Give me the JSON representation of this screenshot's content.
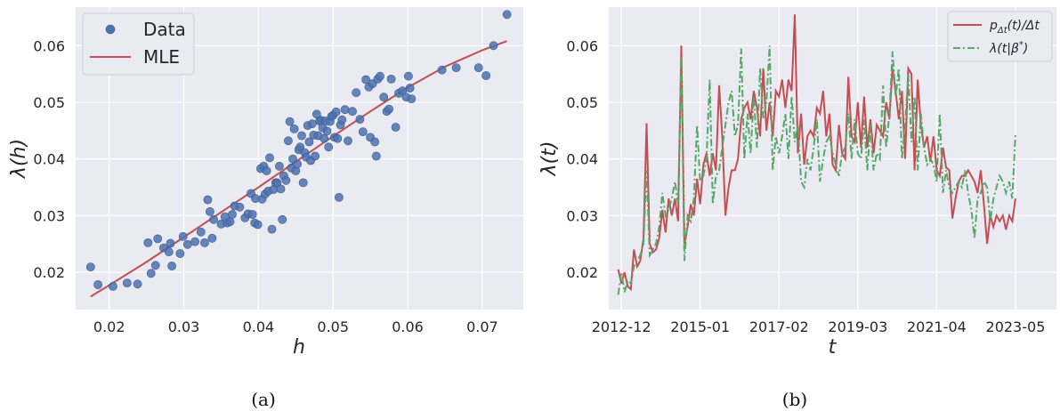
{
  "chart_data": [
    {
      "type": "scatter",
      "panel_label": "(a)",
      "xlabel": "h",
      "ylabel": "λ(h)",
      "xlim": [
        0.0155,
        0.0755
      ],
      "ylim": [
        0.0134,
        0.0668
      ],
      "xticks": [
        0.02,
        0.03,
        0.04,
        0.05,
        0.06,
        0.07
      ],
      "xtick_labels": [
        "0.02",
        "0.03",
        "0.04",
        "0.05",
        "0.06",
        "0.07"
      ],
      "yticks": [
        0.02,
        0.03,
        0.04,
        0.05,
        0.06
      ],
      "ytick_labels": [
        "0.02",
        "0.03",
        "0.04",
        "0.05",
        "0.06"
      ],
      "grid": true,
      "legend_position": "top-left",
      "colors": {
        "data": "#4c72b0",
        "mle": "#c44e52",
        "background": "#eaeaf2",
        "grid": "#ffffff"
      },
      "series": [
        {
          "name": "Data",
          "kind": "scatter",
          "points": [
            [
              0.0175,
              0.0209
            ],
            [
              0.0185,
              0.0178
            ],
            [
              0.0205,
              0.0175
            ],
            [
              0.0224,
              0.0181
            ],
            [
              0.0238,
              0.0179
            ],
            [
              0.0252,
              0.0252
            ],
            [
              0.0256,
              0.0198
            ],
            [
              0.0262,
              0.0212
            ],
            [
              0.0265,
              0.0259
            ],
            [
              0.0273,
              0.0243
            ],
            [
              0.028,
              0.0236
            ],
            [
              0.0282,
              0.0251
            ],
            [
              0.0284,
              0.0211
            ],
            [
              0.0295,
              0.0233
            ],
            [
              0.0299,
              0.0263
            ],
            [
              0.0305,
              0.0249
            ],
            [
              0.0315,
              0.0254
            ],
            [
              0.0323,
              0.0271
            ],
            [
              0.0328,
              0.0252
            ],
            [
              0.0332,
              0.0328
            ],
            [
              0.0335,
              0.0307
            ],
            [
              0.0338,
              0.026
            ],
            [
              0.034,
              0.0293
            ],
            [
              0.035,
              0.0285
            ],
            [
              0.0355,
              0.0298
            ],
            [
              0.0358,
              0.0287
            ],
            [
              0.0362,
              0.0289
            ],
            [
              0.0365,
              0.0302
            ],
            [
              0.0368,
              0.0317
            ],
            [
              0.0375,
              0.0315
            ],
            [
              0.0382,
              0.0296
            ],
            [
              0.0386,
              0.0303
            ],
            [
              0.039,
              0.0339
            ],
            [
              0.0392,
              0.0302
            ],
            [
              0.0395,
              0.0287
            ],
            [
              0.0396,
              0.033
            ],
            [
              0.0399,
              0.0284
            ],
            [
              0.0403,
              0.0383
            ],
            [
              0.0405,
              0.0329
            ],
            [
              0.0407,
              0.0387
            ],
            [
              0.0409,
              0.0338
            ],
            [
              0.0411,
              0.0379
            ],
            [
              0.0413,
              0.0343
            ],
            [
              0.0415,
              0.0402
            ],
            [
              0.0418,
              0.0276
            ],
            [
              0.042,
              0.0346
            ],
            [
              0.0423,
              0.0358
            ],
            [
              0.0425,
              0.0358
            ],
            [
              0.0428,
              0.0387
            ],
            [
              0.043,
              0.0347
            ],
            [
              0.0432,
              0.0293
            ],
            [
              0.0434,
              0.037
            ],
            [
              0.0437,
              0.0362
            ],
            [
              0.044,
              0.0432
            ],
            [
              0.0442,
              0.0466
            ],
            [
              0.0444,
              0.0384
            ],
            [
              0.0446,
              0.04
            ],
            [
              0.0448,
              0.0453
            ],
            [
              0.045,
              0.0379
            ],
            [
              0.0452,
              0.0391
            ],
            [
              0.0454,
              0.0416
            ],
            [
              0.0456,
              0.0421
            ],
            [
              0.0458,
              0.0441
            ],
            [
              0.046,
              0.0358
            ],
            [
              0.0462,
              0.0411
            ],
            [
              0.0464,
              0.0403
            ],
            [
              0.0466,
              0.0459
            ],
            [
              0.0468,
              0.043
            ],
            [
              0.047,
              0.0397
            ],
            [
              0.0472,
              0.0462
            ],
            [
              0.0474,
              0.0442
            ],
            [
              0.0476,
              0.0405
            ],
            [
              0.0478,
              0.0479
            ],
            [
              0.048,
              0.0441
            ],
            [
              0.0482,
              0.0467
            ],
            [
              0.0484,
              0.0468
            ],
            [
              0.0486,
              0.0455
            ],
            [
              0.0488,
              0.0436
            ],
            [
              0.049,
              0.0467
            ],
            [
              0.0492,
              0.0449
            ],
            [
              0.0494,
              0.0421
            ],
            [
              0.0496,
              0.0466
            ],
            [
              0.0498,
              0.0475
            ],
            [
              0.05,
              0.0477
            ],
            [
              0.0502,
              0.0438
            ],
            [
              0.0504,
              0.0483
            ],
            [
              0.0506,
              0.0436
            ],
            [
              0.0508,
              0.0332
            ],
            [
              0.051,
              0.046
            ],
            [
              0.0512,
              0.0469
            ],
            [
              0.0516,
              0.0487
            ],
            [
              0.052,
              0.0432
            ],
            [
              0.0526,
              0.0484
            ],
            [
              0.0531,
              0.0517
            ],
            [
              0.0536,
              0.047
            ],
            [
              0.054,
              0.0448
            ],
            [
              0.0544,
              0.054
            ],
            [
              0.0548,
              0.0527
            ],
            [
              0.055,
              0.0438
            ],
            [
              0.0553,
              0.0533
            ],
            [
              0.0556,
              0.043
            ],
            [
              0.0558,
              0.0405
            ],
            [
              0.056,
              0.0541
            ],
            [
              0.0563,
              0.0546
            ],
            [
              0.0568,
              0.0509
            ],
            [
              0.0572,
              0.0484
            ],
            [
              0.0575,
              0.0488
            ],
            [
              0.0578,
              0.0541
            ],
            [
              0.0584,
              0.0456
            ],
            [
              0.0588,
              0.0516
            ],
            [
              0.0593,
              0.052
            ],
            [
              0.0598,
              0.0509
            ],
            [
              0.0601,
              0.0546
            ],
            [
              0.0603,
              0.0525
            ],
            [
              0.0605,
              0.0506
            ],
            [
              0.0646,
              0.0557
            ],
            [
              0.0665,
              0.0561
            ],
            [
              0.0695,
              0.0561
            ],
            [
              0.0705,
              0.0547
            ],
            [
              0.0715,
              0.06
            ],
            [
              0.0733,
              0.0655
            ]
          ]
        },
        {
          "name": "MLE",
          "kind": "line",
          "points": [
            [
              0.0175,
              0.0157
            ],
            [
              0.02,
              0.0177
            ],
            [
              0.025,
              0.0218
            ],
            [
              0.03,
              0.0262
            ],
            [
              0.035,
              0.0306
            ],
            [
              0.04,
              0.035
            ],
            [
              0.045,
              0.0395
            ],
            [
              0.05,
              0.044
            ],
            [
              0.055,
              0.0484
            ],
            [
              0.06,
              0.0526
            ],
            [
              0.065,
              0.0563
            ],
            [
              0.07,
              0.0592
            ],
            [
              0.0733,
              0.0608
            ]
          ]
        }
      ]
    },
    {
      "type": "line",
      "panel_label": "(b)",
      "xlabel": "t",
      "ylabel": "λ(t)",
      "x_start": "2012-11",
      "x_step": "1 month",
      "xticks": [
        "2012-12",
        "2015-01",
        "2017-02",
        "2019-03",
        "2021-04",
        "2023-05"
      ],
      "xlim": [
        "2012-08",
        "2024-06"
      ],
      "ylim": [
        0.0134,
        0.0668
      ],
      "yticks": [
        0.02,
        0.03,
        0.04,
        0.05,
        0.06
      ],
      "ytick_labels": [
        "0.02",
        "0.03",
        "0.04",
        "0.05",
        "0.06"
      ],
      "grid": true,
      "legend_position": "top-right",
      "colors": {
        "empirical": "#c44e52",
        "model": "#55a868",
        "background": "#eaeaf2",
        "grid": "#ffffff"
      },
      "series": [
        {
          "name": "p_Δt(t)/Δt",
          "style": "solid",
          "values": [
            0.0205,
            0.018,
            0.02,
            0.0175,
            0.017,
            0.024,
            0.021,
            0.022,
            0.026,
            0.0463,
            0.025,
            0.0235,
            0.024,
            0.026,
            0.031,
            0.027,
            0.033,
            0.03,
            0.033,
            0.029,
            0.06,
            0.025,
            0.028,
            0.032,
            0.03,
            0.0365,
            0.032,
            0.039,
            0.041,
            0.037,
            0.041,
            0.038,
            0.053,
            0.044,
            0.03,
            0.035,
            0.038,
            0.038,
            0.04,
            0.047,
            0.049,
            0.05,
            0.047,
            0.052,
            0.049,
            0.044,
            0.056,
            0.045,
            0.05,
            0.044,
            0.052,
            0.051,
            0.054,
            0.049,
            0.054,
            0.052,
            0.0655,
            0.041,
            0.048,
            0.039,
            0.044,
            0.045,
            0.044,
            0.049,
            0.048,
            0.052,
            0.044,
            0.048,
            0.039,
            0.038,
            0.046,
            0.041,
            0.04,
            0.0545,
            0.044,
            0.043,
            0.05,
            0.042,
            0.051,
            0.042,
            0.047,
            0.041,
            0.046,
            0.045,
            0.044,
            0.05,
            0.047,
            0.056,
            0.052,
            0.047,
            0.052,
            0.04,
            0.056,
            0.055,
            0.038,
            0.054,
            0.046,
            0.042,
            0.044,
            0.0395,
            0.044,
            0.038,
            0.037,
            0.042,
            0.0385,
            0.038,
            0.0295,
            0.033,
            0.036,
            0.037,
            0.037,
            0.038,
            0.037,
            0.036,
            0.034,
            0.038,
            0.032,
            0.025,
            0.03,
            0.028,
            0.03,
            0.029,
            0.03,
            0.0275,
            0.03,
            0.029,
            0.033
          ]
        },
        {
          "name": "λ(t|β*)",
          "style": "dashdot",
          "values": [
            0.016,
            0.02,
            0.0165,
            0.0185,
            0.018,
            0.021,
            0.022,
            0.023,
            0.025,
            0.038,
            0.023,
            0.024,
            0.025,
            0.028,
            0.034,
            0.03,
            0.031,
            0.033,
            0.036,
            0.032,
            0.058,
            0.022,
            0.03,
            0.029,
            0.033,
            0.046,
            0.036,
            0.037,
            0.04,
            0.054,
            0.032,
            0.037,
            0.038,
            0.042,
            0.046,
            0.05,
            0.052,
            0.044,
            0.046,
            0.0595,
            0.04,
            0.048,
            0.041,
            0.051,
            0.042,
            0.056,
            0.047,
            0.05,
            0.06,
            0.038,
            0.044,
            0.041,
            0.044,
            0.048,
            0.04,
            0.051,
            0.043,
            0.046,
            0.036,
            0.035,
            0.04,
            0.038,
            0.042,
            0.047,
            0.036,
            0.04,
            0.043,
            0.044,
            0.041,
            0.039,
            0.037,
            0.041,
            0.042,
            0.048,
            0.04,
            0.047,
            0.041,
            0.04,
            0.047,
            0.038,
            0.046,
            0.038,
            0.041,
            0.04,
            0.053,
            0.042,
            0.048,
            0.059,
            0.051,
            0.056,
            0.04,
            0.046,
            0.055,
            0.043,
            0.051,
            0.038,
            0.048,
            0.042,
            0.039,
            0.04,
            0.039,
            0.036,
            0.048,
            0.034,
            0.038,
            0.035,
            0.034,
            0.035,
            0.036,
            0.035,
            0.038,
            0.034,
            0.031,
            0.026,
            0.033,
            0.034,
            0.036,
            0.035,
            0.029,
            0.033,
            0.035,
            0.037,
            0.036,
            0.034,
            0.036,
            0.033,
            0.0445
          ]
        }
      ]
    }
  ]
}
